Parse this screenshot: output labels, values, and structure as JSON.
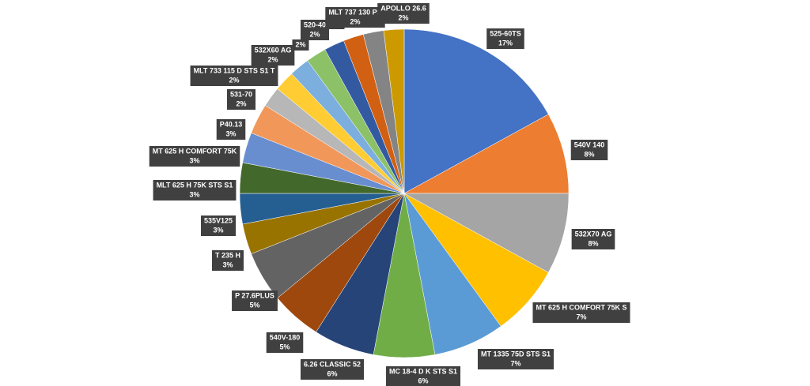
{
  "chart_data": {
    "type": "pie",
    "categories": [
      "525-60TS",
      "540V 140",
      "532X70 AG",
      "MT 625 H COMFORT 75K S",
      "MT 1335 75D STS S1",
      "MC 18-4 D K STS S1",
      "6.26 CLASSIC 52",
      "540V-180",
      "P 27.6PLUS",
      "T 235 H",
      "535V125",
      "MLT 625 H 75K STS S1",
      "MT 625 H COMFORT 75K",
      "P40.13",
      "531-70",
      "MLT 733 115 D STS S1 T",
      "532X60 AG",
      null,
      "520-40",
      null,
      "MLT 737 130 PS",
      "APOLLO 26.6"
    ],
    "values": [
      17,
      8,
      8,
      7,
      7,
      6,
      6,
      5,
      5,
      3,
      3,
      3,
      3,
      3,
      2,
      2,
      2,
      2,
      2,
      2,
      2,
      2
    ],
    "value_labels": [
      "17%",
      "8%",
      "8%",
      "7%",
      "7%",
      "6%",
      "6%",
      "5%",
      "5%",
      "3%",
      "3%",
      "3%",
      "3%",
      "3%",
      "2%",
      "2%",
      "2%",
      "2%",
      "2%",
      "2%",
      "2%",
      "2%"
    ],
    "colors": [
      "#4472c4",
      "#ed7d31",
      "#a5a5a5",
      "#ffc000",
      "#5b9bd5",
      "#70ad47",
      "#264478",
      "#9e480e",
      "#636363",
      "#997300",
      "#255e91",
      "#43682b",
      "#698ed0",
      "#f1975a",
      "#b7b7b7",
      "#ffcd33",
      "#7cafdd",
      "#8cc168",
      "#335aa1",
      "#d26012",
      "#848484",
      "#cc9a00"
    ]
  }
}
